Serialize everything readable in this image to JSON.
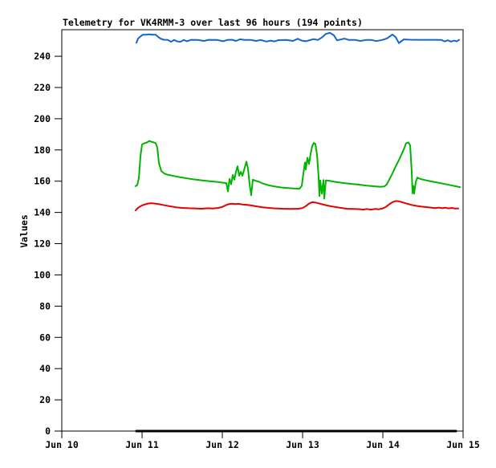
{
  "chart_data": {
    "type": "line",
    "title": "Telemetry for VK4RMM-3 over last 96 hours (194 points)",
    "xlabel": "",
    "ylabel": "Values",
    "point_count": 194,
    "grid": false,
    "legend": "none",
    "x_axis": {
      "tick_labels": [
        "Jun 10",
        "Jun 11",
        "Jun 12",
        "Jun 13",
        "Jun 14",
        "Jun 15"
      ],
      "tick_values": [
        0,
        1,
        2,
        3,
        4,
        5
      ],
      "range": [
        0,
        5
      ],
      "unit_note": "days; data spans last 96 hours (Jun 11 00:00 to Jun 15)"
    },
    "y_axis": {
      "tick_values": [
        0,
        20,
        40,
        60,
        80,
        100,
        120,
        140,
        160,
        180,
        200,
        220,
        240
      ],
      "range": [
        0,
        257
      ]
    },
    "series": [
      {
        "name": "channel-1-blue",
        "color": "#1467c8",
        "width": 2,
        "points": [
          [
            0.93,
            248.6
          ],
          [
            0.95,
            251.3
          ],
          [
            0.98,
            252.7
          ],
          [
            1.01,
            253.8
          ],
          [
            1.05,
            253.8
          ],
          [
            1.09,
            254.0
          ],
          [
            1.13,
            253.8
          ],
          [
            1.17,
            253.8
          ],
          [
            1.2,
            252.4
          ],
          [
            1.23,
            251.3
          ],
          [
            1.27,
            250.6
          ],
          [
            1.32,
            250.5
          ],
          [
            1.36,
            249.3
          ],
          [
            1.4,
            250.4
          ],
          [
            1.44,
            249.5
          ],
          [
            1.48,
            249.3
          ],
          [
            1.52,
            250.4
          ],
          [
            1.56,
            249.6
          ],
          [
            1.61,
            250.5
          ],
          [
            1.7,
            250.4
          ],
          [
            1.77,
            249.8
          ],
          [
            1.83,
            250.5
          ],
          [
            1.94,
            250.4
          ],
          [
            2.01,
            249.6
          ],
          [
            2.06,
            250.4
          ],
          [
            2.12,
            250.6
          ],
          [
            2.17,
            249.8
          ],
          [
            2.22,
            250.9
          ],
          [
            2.28,
            250.4
          ],
          [
            2.36,
            250.4
          ],
          [
            2.42,
            249.8
          ],
          [
            2.48,
            250.4
          ],
          [
            2.55,
            249.4
          ],
          [
            2.6,
            250.0
          ],
          [
            2.65,
            249.5
          ],
          [
            2.7,
            250.3
          ],
          [
            2.8,
            250.4
          ],
          [
            2.88,
            249.8
          ],
          [
            2.94,
            251.2
          ],
          [
            2.99,
            250.0
          ],
          [
            3.04,
            249.6
          ],
          [
            3.09,
            250.3
          ],
          [
            3.14,
            251.0
          ],
          [
            3.19,
            250.4
          ],
          [
            3.24,
            252.0
          ],
          [
            3.29,
            254.3
          ],
          [
            3.34,
            255.0
          ],
          [
            3.39,
            253.4
          ],
          [
            3.43,
            250.2
          ],
          [
            3.47,
            250.7
          ],
          [
            3.52,
            251.3
          ],
          [
            3.58,
            250.4
          ],
          [
            3.66,
            250.4
          ],
          [
            3.72,
            249.8
          ],
          [
            3.79,
            250.4
          ],
          [
            3.86,
            250.4
          ],
          [
            3.92,
            249.7
          ],
          [
            3.99,
            250.4
          ],
          [
            4.05,
            251.4
          ],
          [
            4.12,
            253.9
          ],
          [
            4.16,
            252.2
          ],
          [
            4.2,
            248.4
          ],
          [
            4.26,
            250.8
          ],
          [
            4.34,
            250.6
          ],
          [
            4.44,
            250.5
          ],
          [
            4.55,
            250.5
          ],
          [
            4.65,
            250.5
          ],
          [
            4.73,
            250.4
          ],
          [
            4.77,
            249.5
          ],
          [
            4.81,
            250.2
          ],
          [
            4.85,
            249.4
          ],
          [
            4.89,
            250.0
          ],
          [
            4.92,
            249.5
          ],
          [
            4.95,
            250.5
          ]
        ]
      },
      {
        "name": "channel-2-green",
        "color": "#00b400",
        "width": 2,
        "points": [
          [
            0.92,
            156.8
          ],
          [
            0.94,
            157.5
          ],
          [
            0.96,
            162.0
          ],
          [
            0.98,
            176.0
          ],
          [
            1.0,
            183.5
          ],
          [
            1.03,
            184.3
          ],
          [
            1.06,
            184.8
          ],
          [
            1.09,
            185.8
          ],
          [
            1.12,
            185.2
          ],
          [
            1.15,
            184.8
          ],
          [
            1.17,
            184.3
          ],
          [
            1.19,
            181.5
          ],
          [
            1.21,
            171.5
          ],
          [
            1.24,
            166.5
          ],
          [
            1.28,
            164.8
          ],
          [
            1.33,
            164.0
          ],
          [
            1.4,
            163.3
          ],
          [
            1.48,
            162.5
          ],
          [
            1.56,
            161.8
          ],
          [
            1.64,
            161.2
          ],
          [
            1.72,
            160.7
          ],
          [
            1.8,
            160.2
          ],
          [
            1.88,
            159.8
          ],
          [
            1.96,
            159.4
          ],
          [
            2.02,
            159.0
          ],
          [
            2.05,
            158.8
          ],
          [
            2.07,
            153.5
          ],
          [
            2.09,
            161.5
          ],
          [
            2.11,
            158.0
          ],
          [
            2.13,
            164.0
          ],
          [
            2.15,
            161.0
          ],
          [
            2.17,
            166.0
          ],
          [
            2.19,
            169.5
          ],
          [
            2.21,
            163.5
          ],
          [
            2.23,
            166.0
          ],
          [
            2.25,
            163.5
          ],
          [
            2.27,
            167.0
          ],
          [
            2.3,
            172.5
          ],
          [
            2.32,
            168.0
          ],
          [
            2.34,
            158.0
          ],
          [
            2.36,
            151.0
          ],
          [
            2.38,
            161.0
          ],
          [
            2.41,
            160.3
          ],
          [
            2.45,
            159.8
          ],
          [
            2.5,
            158.6
          ],
          [
            2.57,
            157.5
          ],
          [
            2.65,
            156.6
          ],
          [
            2.73,
            156.0
          ],
          [
            2.82,
            155.6
          ],
          [
            2.9,
            155.3
          ],
          [
            2.96,
            155.2
          ],
          [
            2.99,
            157.0
          ],
          [
            3.01,
            165.0
          ],
          [
            3.03,
            172.0
          ],
          [
            3.04,
            167.5
          ],
          [
            3.06,
            175.0
          ],
          [
            3.08,
            171.0
          ],
          [
            3.1,
            177.5
          ],
          [
            3.12,
            182.5
          ],
          [
            3.14,
            184.5
          ],
          [
            3.16,
            183.8
          ],
          [
            3.18,
            177.0
          ],
          [
            3.2,
            162.5
          ],
          [
            3.21,
            150.5
          ],
          [
            3.22,
            160.5
          ],
          [
            3.24,
            152.0
          ],
          [
            3.26,
            160.8
          ],
          [
            3.27,
            148.8
          ],
          [
            3.29,
            160.5
          ],
          [
            3.33,
            160.3
          ],
          [
            3.4,
            159.6
          ],
          [
            3.5,
            158.9
          ],
          [
            3.6,
            158.3
          ],
          [
            3.7,
            157.8
          ],
          [
            3.8,
            157.2
          ],
          [
            3.9,
            156.7
          ],
          [
            3.97,
            156.4
          ],
          [
            4.02,
            156.6
          ],
          [
            4.05,
            158.0
          ],
          [
            4.08,
            161.0
          ],
          [
            4.12,
            165.0
          ],
          [
            4.16,
            169.5
          ],
          [
            4.2,
            173.5
          ],
          [
            4.24,
            178.0
          ],
          [
            4.27,
            181.5
          ],
          [
            4.29,
            184.3
          ],
          [
            4.32,
            184.8
          ],
          [
            4.34,
            183.0
          ],
          [
            4.36,
            166.0
          ],
          [
            4.37,
            152.3
          ],
          [
            4.38,
            157.0
          ],
          [
            4.39,
            152.0
          ],
          [
            4.41,
            159.5
          ],
          [
            4.43,
            162.3
          ],
          [
            4.47,
            161.4
          ],
          [
            4.52,
            160.8
          ],
          [
            4.58,
            160.1
          ],
          [
            4.65,
            159.4
          ],
          [
            4.72,
            158.7
          ],
          [
            4.8,
            157.9
          ],
          [
            4.87,
            157.2
          ],
          [
            4.93,
            156.5
          ],
          [
            4.96,
            156.2
          ]
        ]
      },
      {
        "name": "channel-3-red",
        "color": "#e60000",
        "width": 2,
        "points": [
          [
            0.92,
            141.3
          ],
          [
            0.94,
            142.5
          ],
          [
            0.97,
            143.6
          ],
          [
            1.0,
            144.5
          ],
          [
            1.04,
            145.2
          ],
          [
            1.08,
            145.7
          ],
          [
            1.12,
            145.9
          ],
          [
            1.17,
            145.6
          ],
          [
            1.22,
            145.2
          ],
          [
            1.28,
            144.6
          ],
          [
            1.35,
            143.9
          ],
          [
            1.42,
            143.3
          ],
          [
            1.5,
            142.9
          ],
          [
            1.58,
            142.7
          ],
          [
            1.66,
            142.6
          ],
          [
            1.74,
            142.4
          ],
          [
            1.82,
            142.7
          ],
          [
            1.88,
            142.5
          ],
          [
            1.95,
            142.9
          ],
          [
            2.0,
            143.5
          ],
          [
            2.04,
            144.6
          ],
          [
            2.08,
            145.3
          ],
          [
            2.12,
            145.6
          ],
          [
            2.16,
            145.3
          ],
          [
            2.2,
            145.5
          ],
          [
            2.25,
            145.1
          ],
          [
            2.3,
            144.9
          ],
          [
            2.36,
            144.5
          ],
          [
            2.42,
            143.9
          ],
          [
            2.5,
            143.3
          ],
          [
            2.58,
            142.9
          ],
          [
            2.66,
            142.6
          ],
          [
            2.75,
            142.4
          ],
          [
            2.85,
            142.3
          ],
          [
            2.95,
            142.4
          ],
          [
            3.0,
            142.8
          ],
          [
            3.04,
            144.0
          ],
          [
            3.08,
            145.6
          ],
          [
            3.12,
            146.6
          ],
          [
            3.16,
            146.3
          ],
          [
            3.2,
            145.8
          ],
          [
            3.26,
            145.0
          ],
          [
            3.33,
            144.2
          ],
          [
            3.4,
            143.5
          ],
          [
            3.48,
            142.9
          ],
          [
            3.55,
            142.4
          ],
          [
            3.62,
            142.2
          ],
          [
            3.7,
            142.1
          ],
          [
            3.76,
            141.8
          ],
          [
            3.8,
            142.2
          ],
          [
            3.85,
            141.8
          ],
          [
            3.9,
            142.2
          ],
          [
            3.95,
            142.0
          ],
          [
            4.0,
            142.6
          ],
          [
            4.04,
            143.6
          ],
          [
            4.08,
            145.2
          ],
          [
            4.12,
            146.6
          ],
          [
            4.16,
            147.3
          ],
          [
            4.2,
            147.1
          ],
          [
            4.25,
            146.4
          ],
          [
            4.3,
            145.6
          ],
          [
            4.36,
            144.8
          ],
          [
            4.42,
            144.2
          ],
          [
            4.48,
            143.7
          ],
          [
            4.54,
            143.4
          ],
          [
            4.6,
            143.1
          ],
          [
            4.65,
            142.8
          ],
          [
            4.7,
            143.1
          ],
          [
            4.74,
            142.7
          ],
          [
            4.78,
            143.0
          ],
          [
            4.82,
            142.6
          ],
          [
            4.86,
            142.9
          ],
          [
            4.9,
            142.5
          ],
          [
            4.94,
            142.6
          ]
        ]
      },
      {
        "name": "channel-4-black-zero",
        "color": "#000000",
        "width": 3,
        "points": [
          [
            0.93,
            0
          ],
          [
            4.91,
            0
          ]
        ]
      }
    ]
  },
  "colors": {
    "background": "#ffffff",
    "axis": "#000000",
    "text": "#000000"
  }
}
